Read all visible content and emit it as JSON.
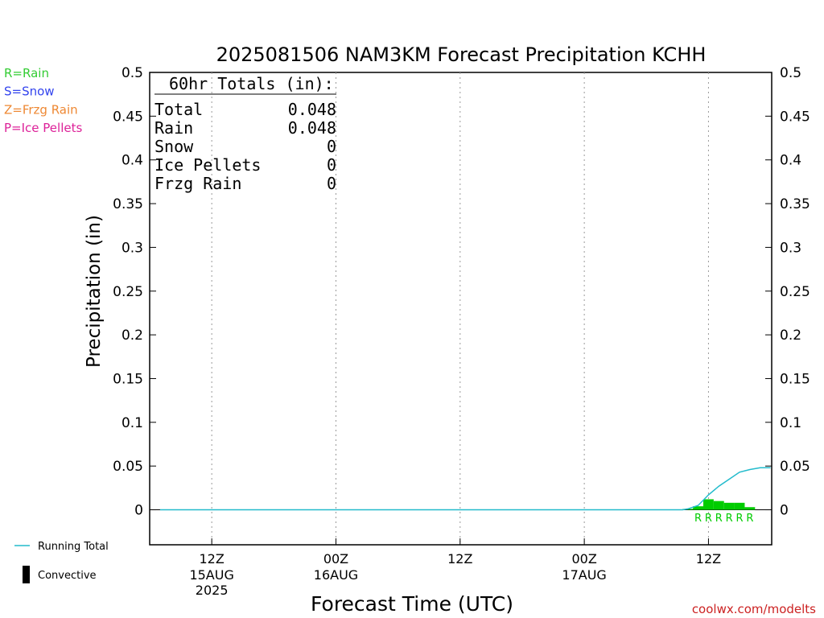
{
  "chart_data": {
    "type": "bar",
    "title": "2025081506 NAM3KM Forecast Precipitation KCHH",
    "xlabel": "Forecast Time (UTC)",
    "ylabel": "Precipitation (in)",
    "ylim": [
      -0.04,
      0.5
    ],
    "y_ticks": [
      "0",
      "0.05",
      "0.1",
      "0.15",
      "0.2",
      "0.25",
      "0.3",
      "0.35",
      "0.4",
      "0.45",
      "0.5"
    ],
    "xlim_hours": [
      0,
      60
    ],
    "x_ticks": [
      {
        "hour": 6,
        "label": "12Z",
        "date": "15AUG",
        "year": "2025"
      },
      {
        "hour": 18,
        "label": "00Z",
        "date": "16AUG",
        "year": ""
      },
      {
        "hour": 30,
        "label": "12Z",
        "date": "",
        "year": ""
      },
      {
        "hour": 42,
        "label": "00Z",
        "date": "17AUG",
        "year": ""
      },
      {
        "hour": 54,
        "label": "12Z",
        "date": "",
        "year": ""
      }
    ],
    "grid": "vertical dotted at tick hours",
    "legend_types": [
      {
        "text": "R=Rain",
        "color": "#33cc33"
      },
      {
        "text": "S=Snow",
        "color": "#3344ee"
      },
      {
        "text": "Z=Frzg Rain",
        "color": "#ee8833"
      },
      {
        "text": "P=Ice Pellets",
        "color": "#dd2299"
      }
    ],
    "legend_lines": [
      {
        "text": "Running Total",
        "color": "#22bbcc",
        "kind": "line"
      },
      {
        "text": "Convective",
        "color": "#000000",
        "kind": "bar"
      }
    ],
    "totals": {
      "header": "60hr Totals (in):",
      "rows": [
        {
          "label": "Total",
          "value": "0.048"
        },
        {
          "label": "Rain",
          "value": "0.048"
        },
        {
          "label": "Snow",
          "value": "0"
        },
        {
          "label": "Ice Pellets",
          "value": "0"
        },
        {
          "label": "Frzg Rain",
          "value": "0"
        }
      ]
    },
    "hourly_precip": [
      {
        "hour": 52,
        "value": 0.001,
        "type": "R"
      },
      {
        "hour": 53,
        "value": 0.004,
        "type": "R"
      },
      {
        "hour": 54,
        "value": 0.012,
        "type": "R"
      },
      {
        "hour": 55,
        "value": 0.01,
        "type": "R"
      },
      {
        "hour": 56,
        "value": 0.008,
        "type": "R"
      },
      {
        "hour": 57,
        "value": 0.008,
        "type": "R"
      },
      {
        "hour": 58,
        "value": 0.003,
        "type": "R"
      }
    ],
    "precip_type_labels": [
      {
        "hour": 53,
        "text": "R"
      },
      {
        "hour": 54,
        "text": "R"
      },
      {
        "hour": 55,
        "text": "R"
      },
      {
        "hour": 56,
        "text": "R"
      },
      {
        "hour": 57,
        "text": "R"
      },
      {
        "hour": 58,
        "text": "R"
      }
    ],
    "running_total": {
      "x": [
        1,
        51.5,
        52,
        53,
        54,
        55,
        56,
        57,
        58,
        59,
        60
      ],
      "y": [
        0,
        0,
        0.001,
        0.005,
        0.017,
        0.027,
        0.035,
        0.043,
        0.046,
        0.048,
        0.048
      ]
    },
    "colors": {
      "rain": "#00cc00",
      "running_total": "#22bbcc",
      "axis": "#000000",
      "grid": "#999999",
      "credit": "#cc2222"
    },
    "credit": "coolwx.com/modelts"
  }
}
